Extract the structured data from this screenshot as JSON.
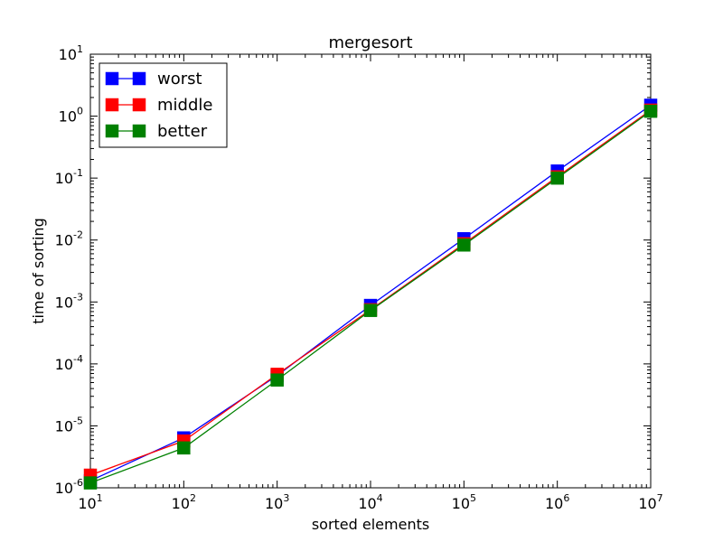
{
  "chart_data": {
    "type": "line",
    "title": "mergesort",
    "xlabel": "sorted elements",
    "ylabel": "time of sorting",
    "xscale": "log",
    "yscale": "log",
    "xlim": [
      10,
      10000000
    ],
    "ylim": [
      1e-06,
      10
    ],
    "x": [
      10,
      100,
      1000,
      10000,
      100000,
      1000000,
      10000000
    ],
    "x_ticks": [
      {
        "base": "10",
        "exp": "1"
      },
      {
        "base": "10",
        "exp": "2"
      },
      {
        "base": "10",
        "exp": "3"
      },
      {
        "base": "10",
        "exp": "4"
      },
      {
        "base": "10",
        "exp": "5"
      },
      {
        "base": "10",
        "exp": "6"
      },
      {
        "base": "10",
        "exp": "7"
      }
    ],
    "y_ticks": [
      {
        "base": "10",
        "exp": "-6"
      },
      {
        "base": "10",
        "exp": "-5"
      },
      {
        "base": "10",
        "exp": "-4"
      },
      {
        "base": "10",
        "exp": "-3"
      },
      {
        "base": "10",
        "exp": "-2"
      },
      {
        "base": "10",
        "exp": "-1"
      },
      {
        "base": "10",
        "exp": "0"
      },
      {
        "base": "10",
        "exp": "1"
      }
    ],
    "series": [
      {
        "name": "worst",
        "color": "#0000ff",
        "marker": "square",
        "values": [
          1.3e-06,
          6.4e-06,
          6.5e-05,
          0.00088,
          0.0105,
          0.13,
          1.5
        ]
      },
      {
        "name": "middle",
        "color": "#ff0000",
        "marker": "square",
        "values": [
          1.6e-06,
          5.7e-06,
          6.8e-05,
          0.00075,
          0.0087,
          0.105,
          1.25
        ]
      },
      {
        "name": "better",
        "color": "#008000",
        "marker": "square",
        "values": [
          1.2e-06,
          4.4e-06,
          5.5e-05,
          0.00073,
          0.0083,
          0.1,
          1.2
        ]
      }
    ],
    "legend_position": "top-left",
    "grid": false
  }
}
